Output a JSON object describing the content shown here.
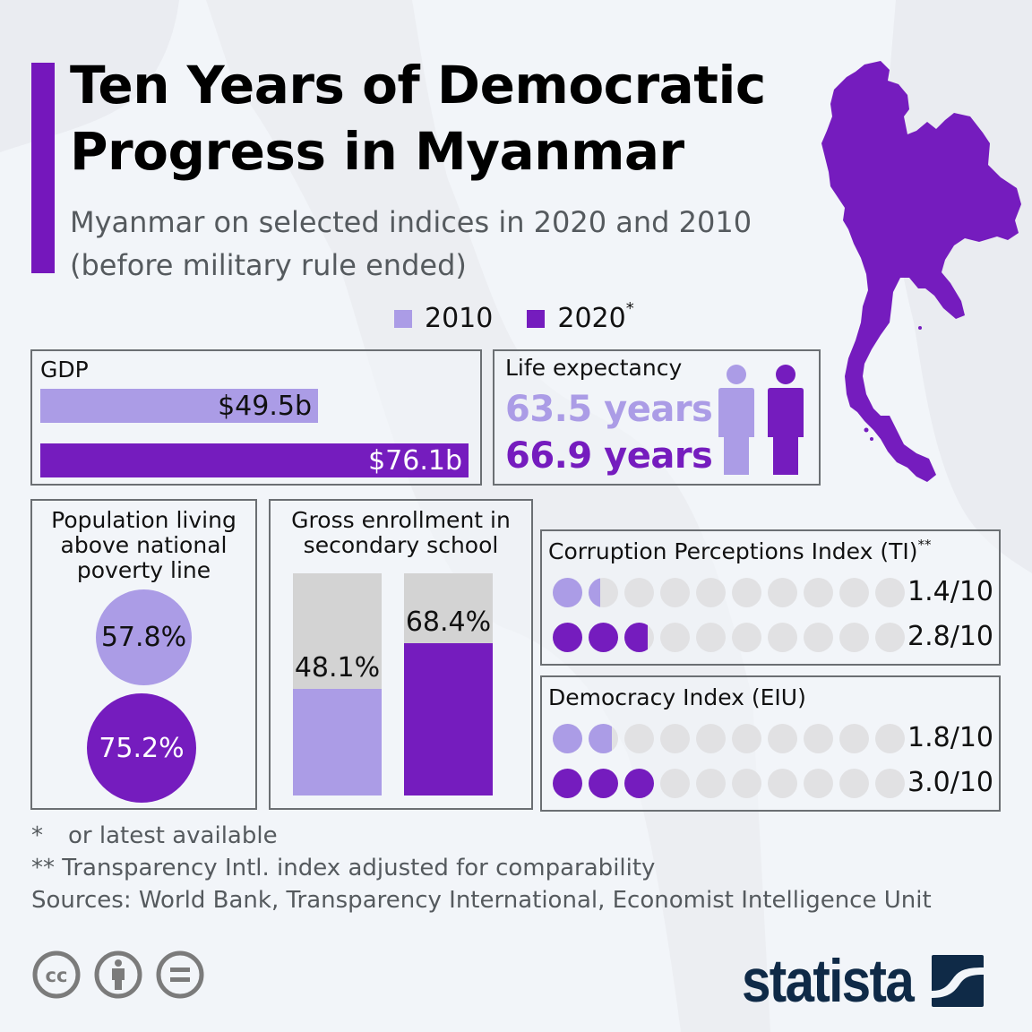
{
  "colors": {
    "year_2010": "#ab9ce6",
    "year_2020": "#751cbe",
    "accent": "#7517bc",
    "empty": "#e1e1e3",
    "bar_track": "#d3d3d3",
    "brand_navy": "#0f2a47",
    "cc_gray": "#7b7b7b"
  },
  "header": {
    "title_line1": "Ten Years of Democratic",
    "title_line2": "Progress in Myanmar",
    "subtitle_line1": "Myanmar on selected indices in 2020 and 2010",
    "subtitle_line2": "(before military rule ended)"
  },
  "legend": {
    "items": [
      {
        "label": "2010",
        "note": ""
      },
      {
        "label": "2020",
        "note": "*"
      }
    ]
  },
  "gdp": {
    "title": "GDP",
    "bars": [
      {
        "year": "2010",
        "label": "$49.5b",
        "value": 49.5
      },
      {
        "year": "2020",
        "label": "$76.1b",
        "value": 76.1
      }
    ]
  },
  "life_expectancy": {
    "title": "Life expectancy",
    "values": [
      {
        "year": "2010",
        "label": "63.5 years",
        "value": 63.5
      },
      {
        "year": "2020",
        "label": "66.9 years",
        "value": 66.9
      }
    ]
  },
  "poverty": {
    "title_line1": "Population living",
    "title_line2": "above national",
    "title_line3": "poverty line",
    "values": [
      {
        "year": "2010",
        "label": "57.8%",
        "value": 57.8
      },
      {
        "year": "2020",
        "label": "75.2%",
        "value": 75.2
      }
    ]
  },
  "enrollment": {
    "title_line1": "Gross enrollment in",
    "title_line2": "secondary school",
    "values": [
      {
        "year": "2010",
        "label": "48.1%",
        "value": 48.1
      },
      {
        "year": "2020",
        "label": "68.4%",
        "value": 68.4
      }
    ]
  },
  "cpi": {
    "title": "Corruption Perceptions Index (TI)",
    "title_note": "**",
    "values": [
      {
        "year": "2010",
        "label": "1.4/10",
        "value": 1.4
      },
      {
        "year": "2020",
        "label": "2.8/10",
        "value": 2.8
      }
    ]
  },
  "democracy": {
    "title": "Democracy Index (EIU)",
    "values": [
      {
        "year": "2010",
        "label": "1.8/10",
        "value": 1.8
      },
      {
        "year": "2020",
        "label": "3.0/10",
        "value": 3.0
      }
    ]
  },
  "footnotes": {
    "note1_marker": "*",
    "note1_text": "or latest available",
    "note2": "** Transparency Intl. index adjusted for comparability",
    "sources": "Sources: World Bank, Transparency International, Economist Intelligence Unit"
  },
  "license_icons": [
    "cc-icon",
    "attribution-icon",
    "no-derivatives-icon"
  ],
  "brand": {
    "name": "statista"
  },
  "chart_data": [
    {
      "type": "bar",
      "title": "GDP",
      "categories": [
        "2010",
        "2020"
      ],
      "values": [
        49.5,
        76.1
      ],
      "unit": "$b",
      "orientation": "horizontal"
    },
    {
      "type": "table",
      "title": "Life expectancy",
      "categories": [
        "2010",
        "2020"
      ],
      "values": [
        63.5,
        66.9
      ],
      "unit": "years"
    },
    {
      "type": "bubble",
      "title": "Population living above national poverty line",
      "categories": [
        "2010",
        "2020"
      ],
      "values": [
        57.8,
        75.2
      ],
      "unit": "%"
    },
    {
      "type": "bar",
      "title": "Gross enrollment in secondary school",
      "categories": [
        "2010",
        "2020"
      ],
      "values": [
        48.1,
        68.4
      ],
      "unit": "%",
      "ylim": [
        0,
        100
      ]
    },
    {
      "type": "dot",
      "title": "Corruption Perceptions Index (TI)**",
      "categories": [
        "2010",
        "2020"
      ],
      "values": [
        1.4,
        2.8
      ],
      "max": 10
    },
    {
      "type": "dot",
      "title": "Democracy Index (EIU)",
      "categories": [
        "2010",
        "2020"
      ],
      "values": [
        1.8,
        3.0
      ],
      "max": 10
    }
  ]
}
